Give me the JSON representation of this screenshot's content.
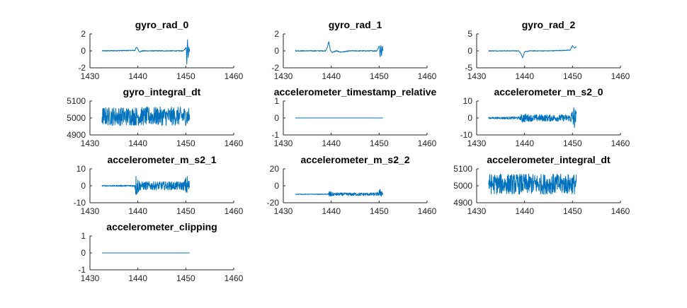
{
  "chart_data": [
    {
      "type": "line",
      "title": "gyro_rad_0",
      "xlim": [
        1430,
        1460
      ],
      "ylim": [
        -2,
        2
      ],
      "xticks": [
        "1430",
        "1440",
        "1450",
        "1460"
      ],
      "yticks": [
        "-2",
        "0",
        "2"
      ],
      "color": "#0072bd",
      "series": [
        {
          "x": [
            1432.5,
            1439.4,
            1439.6,
            1439.9,
            1440.3,
            1441.0,
            1442.0,
            1445.0,
            1448.0,
            1449.5,
            1450.1,
            1450.2,
            1450.35,
            1450.5,
            1450.65,
            1450.8
          ],
          "y": [
            0.0,
            0.05,
            0.4,
            0.3,
            -0.1,
            0.0,
            0.0,
            0.0,
            0.0,
            0.0,
            0.4,
            -1.7,
            1.4,
            -0.8,
            0.5,
            -0.1
          ],
          "noise": 0.05
        }
      ]
    },
    {
      "type": "line",
      "title": "gyro_rad_1",
      "xlim": [
        1430,
        1460
      ],
      "ylim": [
        -2,
        2
      ],
      "xticks": [
        "1430",
        "1440",
        "1450",
        "1460"
      ],
      "yticks": [
        "-2",
        "0",
        "2"
      ],
      "color": "#0072bd",
      "series": [
        {
          "x": [
            1432.5,
            1438.8,
            1439.2,
            1439.5,
            1439.8,
            1440.2,
            1441.0,
            1442.0,
            1444.0,
            1447.0,
            1449.5,
            1450.05,
            1450.2,
            1450.35,
            1450.5,
            1450.65,
            1450.8
          ],
          "y": [
            0.0,
            0.0,
            0.4,
            1.1,
            0.1,
            -0.2,
            0.0,
            -0.15,
            0.0,
            0.0,
            0.0,
            0.6,
            -0.8,
            0.7,
            -0.6,
            0.6,
            0.0
          ],
          "noise": 0.05
        }
      ]
    },
    {
      "type": "line",
      "title": "gyro_rad_2",
      "xlim": [
        1430,
        1460
      ],
      "ylim": [
        -5,
        5
      ],
      "xticks": [
        "1430",
        "1440",
        "1450",
        "1460"
      ],
      "yticks": [
        "-5",
        "0",
        "5"
      ],
      "color": "#0072bd",
      "series": [
        {
          "x": [
            1432.5,
            1438.8,
            1439.2,
            1439.6,
            1440.0,
            1441.0,
            1445.0,
            1449.5,
            1450.0,
            1450.4,
            1450.8
          ],
          "y": [
            0.0,
            0.0,
            -0.7,
            -2.0,
            -0.3,
            0.0,
            0.0,
            0.2,
            1.5,
            0.8,
            1.2
          ],
          "noise": 0.1
        }
      ]
    },
    {
      "type": "line",
      "title": "gyro_integral_dt",
      "xlim": [
        1430,
        1460
      ],
      "ylim": [
        4900,
        5100
      ],
      "xticks": [
        "1430",
        "1440",
        "1450",
        "1460"
      ],
      "yticks": [
        "4900",
        "5000",
        "5100"
      ],
      "color": "#0072bd",
      "series": [
        {
          "x": [
            1432.5,
            1450.8
          ],
          "y": [
            5010,
            5010
          ],
          "noise": 55
        }
      ]
    },
    {
      "type": "line",
      "title": "accelerometer_timestamp_relative",
      "xlim": [
        1430,
        1460
      ],
      "ylim": [
        -1,
        1
      ],
      "xticks": [
        "1430",
        "1440",
        "1450",
        "1460"
      ],
      "yticks": [
        "-1",
        "0",
        "1"
      ],
      "color": "#0072bd",
      "series": [
        {
          "x": [
            1432.5,
            1450.8
          ],
          "y": [
            0,
            0
          ],
          "noise": 0
        }
      ]
    },
    {
      "type": "line",
      "title": "accelerometer_m_s2_0",
      "xlim": [
        1430,
        1460
      ],
      "ylim": [
        -10,
        10
      ],
      "xticks": [
        "1430",
        "1440",
        "1450",
        "1460"
      ],
      "yticks": [
        "-10",
        "0",
        "10"
      ],
      "color": "#0072bd",
      "series": [
        {
          "x": [
            1432.5,
            1439.0,
            1439.5,
            1441.0,
            1449.5,
            1450.3,
            1450.8
          ],
          "y": [
            0,
            0,
            0,
            0,
            0,
            0,
            0
          ],
          "noise": [
            0.5,
            0.8,
            3.0,
            2.0,
            2.0,
            8.0,
            4.0
          ]
        }
      ]
    },
    {
      "type": "line",
      "title": "accelerometer_m_s2_1",
      "xlim": [
        1430,
        1460
      ],
      "ylim": [
        -10,
        10
      ],
      "xticks": [
        "1430",
        "1440",
        "1450",
        "1460"
      ],
      "yticks": [
        "-10",
        "0",
        "10"
      ],
      "color": "#0072bd",
      "series": [
        {
          "x": [
            1432.5,
            1439.3,
            1439.6,
            1440.5,
            1449.5,
            1450.3,
            1450.8
          ],
          "y": [
            0,
            0,
            0,
            0,
            0,
            0,
            0
          ],
          "noise": [
            0.3,
            0.5,
            7.0,
            2.5,
            2.5,
            6.5,
            3.0
          ]
        }
      ]
    },
    {
      "type": "line",
      "title": "accelerometer_m_s2_2",
      "xlim": [
        1430,
        1460
      ],
      "ylim": [
        -20,
        20
      ],
      "xticks": [
        "1430",
        "1440",
        "1450",
        "1460"
      ],
      "yticks": [
        "-20",
        "0",
        "20"
      ],
      "color": "#0072bd",
      "series": [
        {
          "x": [
            1432.5,
            1439.3,
            1439.6,
            1440.5,
            1449.5,
            1450.3,
            1450.8
          ],
          "y": [
            -10,
            -10,
            -10,
            -10,
            -10,
            -8,
            -9
          ],
          "noise": [
            0.3,
            0.4,
            4.0,
            1.8,
            1.8,
            5.0,
            3.0
          ]
        }
      ]
    },
    {
      "type": "line",
      "title": "accelerometer_integral_dt",
      "xlim": [
        1430,
        1460
      ],
      "ylim": [
        4900,
        5100
      ],
      "xticks": [
        "1430",
        "1440",
        "1450",
        "1460"
      ],
      "yticks": [
        "4900",
        "5000",
        "5100"
      ],
      "color": "#0072bd",
      "series": [
        {
          "x": [
            1432.5,
            1450.8
          ],
          "y": [
            5010,
            5010
          ],
          "noise": 60
        }
      ]
    },
    {
      "type": "line",
      "title": "accelerometer_clipping",
      "xlim": [
        1430,
        1460
      ],
      "ylim": [
        -1,
        1
      ],
      "xticks": [
        "1430",
        "1440",
        "1450",
        "1460"
      ],
      "yticks": [
        "-1",
        "0",
        "1"
      ],
      "color": "#0072bd",
      "series": [
        {
          "x": [
            1432.5,
            1450.8
          ],
          "y": [
            0,
            0
          ],
          "noise": 0
        }
      ]
    }
  ]
}
